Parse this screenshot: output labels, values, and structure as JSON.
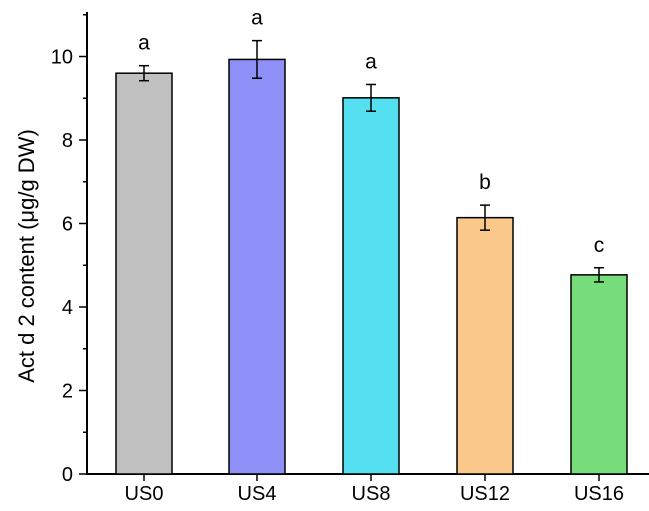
{
  "chart_data": {
    "type": "bar",
    "categories": [
      "US0",
      "US4",
      "US8",
      "US12",
      "US16"
    ],
    "values": [
      9.6,
      9.93,
      9.01,
      6.14,
      4.77
    ],
    "errors": [
      0.18,
      0.45,
      0.32,
      0.3,
      0.17
    ],
    "significance_labels": [
      "a",
      "a",
      "a",
      "b",
      "c"
    ],
    "bar_colors": [
      "#c0c0c0",
      "#8f8ff8",
      "#55e0f2",
      "#fbc88c",
      "#77dd7a"
    ],
    "xlabel": "",
    "ylabel": "Act d 2 content (μg/g DW)",
    "ylim": [
      0,
      11
    ],
    "yticks": [
      0,
      2,
      4,
      6,
      8,
      10
    ],
    "ytick_labels": [
      "0",
      "2",
      "4",
      "6",
      "8",
      "10"
    ],
    "grid": false,
    "legend": "none"
  }
}
